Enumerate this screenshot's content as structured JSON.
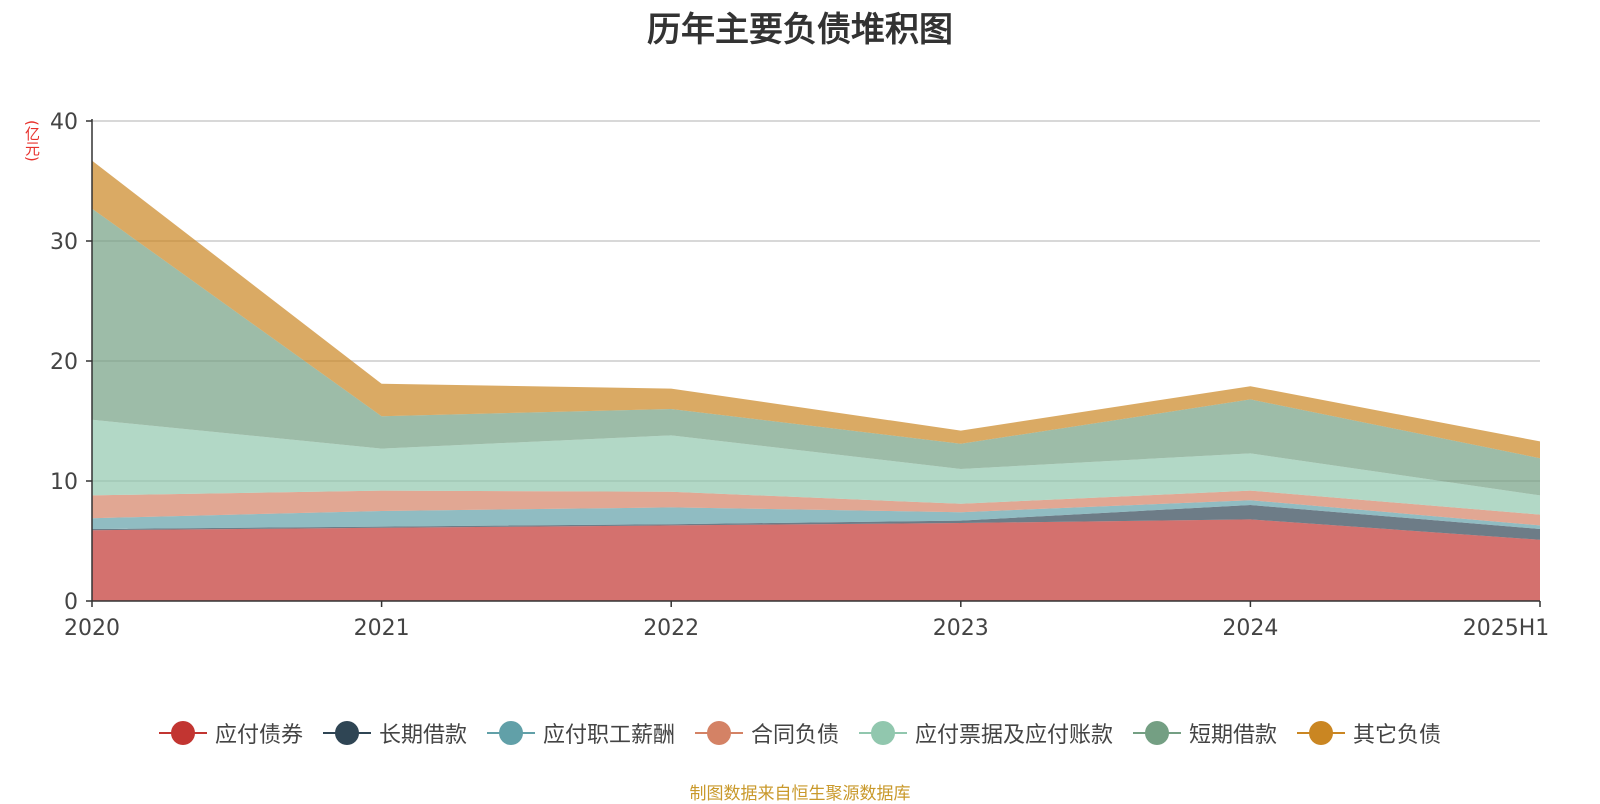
{
  "chart_data": {
    "type": "area",
    "stacked": true,
    "title": "历年主要负债堆积图",
    "unit_label": "(亿元)",
    "x": [
      "2020",
      "2021",
      "2022",
      "2023",
      "2024",
      "2025H1"
    ],
    "ylim": [
      0,
      40
    ],
    "yticks": [
      0,
      10,
      20,
      30,
      40
    ],
    "grid": true,
    "legend_position": "bottom",
    "series": [
      {
        "name": "应付债券",
        "color": "#c23531",
        "values": [
          5.9,
          6.1,
          6.3,
          6.5,
          6.8,
          5.1
        ]
      },
      {
        "name": "长期借款",
        "color": "#2f4554",
        "values": [
          0.1,
          0.1,
          0.1,
          0.2,
          1.2,
          0.9
        ]
      },
      {
        "name": "应付职工薪酬",
        "color": "#61a0a8",
        "values": [
          0.9,
          1.3,
          1.4,
          0.7,
          0.4,
          0.3
        ]
      },
      {
        "name": "合同负债",
        "color": "#d48265",
        "values": [
          1.9,
          1.7,
          1.3,
          0.7,
          0.8,
          0.9
        ]
      },
      {
        "name": "应付票据及应付账款",
        "color": "#91c7ae",
        "values": [
          6.3,
          3.5,
          4.7,
          2.9,
          3.1,
          1.6
        ]
      },
      {
        "name": "短期借款",
        "color": "#749f83",
        "values": [
          17.6,
          2.7,
          2.2,
          2.1,
          4.5,
          3.1
        ]
      },
      {
        "name": "其它负债",
        "color": "#ca8622",
        "values": [
          4.0,
          2.7,
          1.7,
          1.1,
          1.1,
          1.4
        ]
      }
    ]
  },
  "source_note": "制图数据来自恒生聚源数据库"
}
